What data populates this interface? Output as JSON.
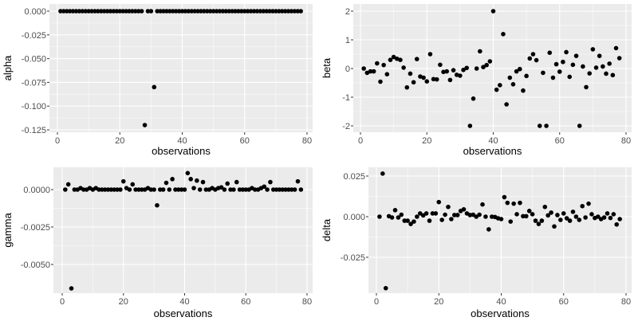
{
  "chart_data": [
    {
      "type": "scatter",
      "panel": "top-left",
      "title": "",
      "xlabel": "observations",
      "ylabel": "alpha",
      "xlim": [
        0,
        80
      ],
      "ylim": [
        -0.125,
        0.0
      ],
      "x_ticks": [
        0,
        20,
        40,
        60,
        80
      ],
      "x_tick_labels": [
        "0",
        "20",
        "40",
        "60",
        "80"
      ],
      "y_ticks": [
        0.0,
        -0.025,
        -0.05,
        -0.075,
        -0.1,
        -0.125
      ],
      "y_tick_labels": [
        "0.000",
        "-0.025",
        "-0.050",
        "-0.075",
        "-0.100",
        "-0.125"
      ],
      "grid": true,
      "x": [
        1,
        2,
        3,
        4,
        5,
        6,
        7,
        8,
        9,
        10,
        11,
        12,
        13,
        14,
        15,
        16,
        17,
        18,
        19,
        20,
        21,
        22,
        23,
        24,
        25,
        26,
        27,
        28,
        29,
        30,
        31,
        32,
        33,
        34,
        35,
        36,
        37,
        38,
        39,
        40,
        41,
        42,
        43,
        44,
        45,
        46,
        47,
        48,
        49,
        50,
        51,
        52,
        53,
        54,
        55,
        56,
        57,
        58,
        59,
        60,
        61,
        62,
        63,
        64,
        65,
        66,
        67,
        68,
        69,
        70,
        71,
        72,
        73,
        74,
        75,
        76,
        77,
        78
      ],
      "y": [
        0,
        0,
        0,
        0,
        0,
        0,
        0,
        0,
        0,
        0,
        0,
        0,
        0,
        0,
        0,
        0,
        0,
        0,
        0,
        0,
        0,
        0,
        0,
        0,
        0,
        0,
        0,
        -0.12,
        0,
        0,
        -0.08,
        0,
        0,
        0,
        0,
        0,
        0,
        0,
        0,
        0,
        0,
        0,
        0,
        0,
        0,
        0,
        0,
        0,
        0,
        0,
        0,
        0,
        0,
        0,
        0,
        0,
        0,
        0,
        0,
        0,
        0,
        0,
        0,
        0,
        0,
        0,
        0,
        0,
        0,
        0,
        0,
        0,
        0,
        0,
        0,
        0,
        0,
        0
      ]
    },
    {
      "type": "scatter",
      "panel": "top-right",
      "title": "",
      "xlabel": "observations",
      "ylabel": "beta",
      "xlim": [
        0,
        80
      ],
      "ylim": [
        -2,
        2
      ],
      "x_ticks": [
        0,
        20,
        40,
        60,
        80
      ],
      "x_tick_labels": [
        "0",
        "20",
        "40",
        "60",
        "80"
      ],
      "y_ticks": [
        2,
        1,
        0,
        -1,
        -2
      ],
      "y_tick_labels": [
        "2",
        "1",
        "0",
        "-1",
        "-2"
      ],
      "grid": true,
      "x": [
        1,
        2,
        3,
        4,
        5,
        6,
        7,
        8,
        9,
        10,
        11,
        12,
        13,
        14,
        15,
        16,
        17,
        18,
        19,
        20,
        21,
        22,
        23,
        24,
        25,
        26,
        27,
        28,
        29,
        30,
        31,
        32,
        33,
        34,
        35,
        36,
        37,
        38,
        39,
        40,
        41,
        42,
        43,
        44,
        45,
        46,
        47,
        48,
        49,
        50,
        51,
        52,
        53,
        54,
        55,
        56,
        57,
        58,
        59,
        60,
        61,
        62,
        63,
        64,
        65,
        66,
        67,
        68,
        69,
        70,
        71,
        72,
        73,
        74,
        75,
        76,
        77,
        78
      ],
      "y": [
        0.0,
        -0.15,
        -0.1,
        -0.1,
        0.18,
        -0.46,
        0.12,
        -0.2,
        0.3,
        0.4,
        0.34,
        0.3,
        0.03,
        -0.66,
        -0.18,
        -0.48,
        0.33,
        -0.28,
        -0.32,
        -0.45,
        0.5,
        -0.37,
        -0.38,
        0.13,
        -0.12,
        -0.1,
        -0.4,
        -0.06,
        -0.22,
        -0.25,
        -0.05,
        0.02,
        -2.0,
        -1.05,
        0.0,
        0.6,
        0.05,
        0.12,
        0.25,
        2.0,
        -0.74,
        -0.58,
        1.2,
        -1.25,
        -0.32,
        -0.55,
        -0.1,
        -0.02,
        -0.77,
        -0.26,
        0.35,
        0.5,
        0.29,
        -2.0,
        -0.15,
        -2.0,
        0.55,
        -0.32,
        0.15,
        -0.11,
        0.23,
        0.57,
        -0.29,
        0.13,
        0.44,
        -2.0,
        0.07,
        -0.65,
        -0.17,
        0.67,
        0.03,
        0.44,
        0.07,
        -0.18,
        0.17,
        -0.23,
        0.71,
        0.36
      ]
    },
    {
      "type": "scatter",
      "panel": "bottom-left",
      "title": "",
      "xlabel": "observations",
      "ylabel": "gamma",
      "xlim": [
        0,
        80
      ],
      "ylim": [
        -0.0067,
        0.0012
      ],
      "x_ticks": [
        0,
        20,
        40,
        60,
        80
      ],
      "x_tick_labels": [
        "0",
        "20",
        "40",
        "60",
        "80"
      ],
      "y_ticks": [
        0.0,
        -0.0025,
        -0.005
      ],
      "y_tick_labels": [
        "0.0000",
        "-0.0025",
        "-0.0050"
      ],
      "grid": true,
      "x": [
        1,
        2,
        3,
        4,
        5,
        6,
        7,
        8,
        9,
        10,
        11,
        12,
        13,
        14,
        15,
        16,
        17,
        18,
        19,
        20,
        21,
        22,
        23,
        24,
        25,
        26,
        27,
        28,
        29,
        30,
        31,
        32,
        33,
        34,
        35,
        36,
        37,
        38,
        39,
        40,
        41,
        42,
        43,
        44,
        45,
        46,
        47,
        48,
        49,
        50,
        51,
        52,
        53,
        54,
        55,
        56,
        57,
        58,
        59,
        60,
        61,
        62,
        63,
        64,
        65,
        66,
        67,
        68,
        69,
        70,
        71,
        72,
        73,
        74,
        75,
        76,
        77,
        78
      ],
      "y": [
        0.0,
        0.00035,
        -0.0066,
        0.0,
        0.0,
        0.0001,
        0.0,
        0.0,
        0.0001,
        0.0,
        0.0001,
        0.0,
        0.0,
        0.0,
        0.0,
        0.0,
        0.0,
        0.0,
        0.0,
        0.00055,
        0.0001,
        0.0,
        0.00035,
        0.0,
        0.0,
        0.0,
        0.0,
        0.0001,
        0.0,
        0.0,
        -0.00105,
        0.0,
        0.0,
        0.00045,
        0.0,
        0.0007,
        0.0,
        0.0,
        0.0,
        0.0,
        0.0011,
        0.0007,
        0.0001,
        0.0006,
        0.0,
        0.0005,
        0.0,
        0.0,
        0.0001,
        0.0,
        0.0001,
        0.00015,
        0.0,
        0.0004,
        0.0,
        0.0,
        0.0005,
        0.0,
        0.0,
        0.0,
        0.0,
        0.0001,
        0.0,
        0.0,
        0.0001,
        0.0002,
        0.0,
        0.0005,
        0.0,
        0.0,
        0.0,
        0.0,
        0.0,
        0.0,
        0.0,
        0.0,
        0.00055,
        0.0
      ]
    },
    {
      "type": "scatter",
      "panel": "bottom-right",
      "title": "",
      "xlabel": "observations",
      "ylabel": "delta",
      "xlim": [
        0,
        80
      ],
      "ylim": [
        -0.044,
        0.027
      ],
      "x_ticks": [
        0,
        20,
        40,
        60,
        80
      ],
      "x_tick_labels": [
        "0",
        "20",
        "40",
        "60",
        "80"
      ],
      "y_ticks": [
        0.025,
        0.0,
        -0.025
      ],
      "y_tick_labels": [
        "0.025",
        "0.000",
        "-0.025"
      ],
      "grid": true,
      "x": [
        1,
        2,
        3,
        4,
        5,
        6,
        7,
        8,
        9,
        10,
        11,
        12,
        13,
        14,
        15,
        16,
        17,
        18,
        19,
        20,
        21,
        22,
        23,
        24,
        25,
        26,
        27,
        28,
        29,
        30,
        31,
        32,
        33,
        34,
        35,
        36,
        37,
        38,
        39,
        40,
        41,
        42,
        43,
        44,
        45,
        46,
        47,
        48,
        49,
        50,
        51,
        52,
        53,
        54,
        55,
        56,
        57,
        58,
        59,
        60,
        61,
        62,
        63,
        64,
        65,
        66,
        67,
        68,
        69,
        70,
        71,
        72,
        73,
        74,
        75,
        76,
        77,
        78
      ],
      "y": [
        0.0,
        0.0265,
        -0.044,
        0.0003,
        -0.0005,
        0.004,
        -0.0005,
        0.0012,
        -0.0025,
        -0.0025,
        -0.0045,
        -0.003,
        0.0,
        0.002,
        0.0008,
        0.002,
        -0.0025,
        0.002,
        0.002,
        0.009,
        -0.002,
        0.0012,
        0.006,
        -0.0015,
        0.001,
        0.001,
        0.0035,
        0.0045,
        0.002,
        0.001,
        0.0012,
        0.0,
        0.0012,
        0.0075,
        0.0,
        -0.0078,
        0.0,
        -0.0002,
        -0.001,
        -0.0015,
        0.012,
        0.0085,
        -0.003,
        0.008,
        0.0015,
        0.0085,
        0.0003,
        0.0003,
        0.0035,
        0.0015,
        -0.0025,
        -0.0045,
        -0.0025,
        0.006,
        0.0008,
        0.0025,
        -0.006,
        0.001,
        -0.002,
        0.002,
        -0.001,
        -0.0025,
        0.003,
        0.0,
        -0.002,
        0.0065,
        -0.0005,
        0.008,
        0.0015,
        -0.0008,
        0.0,
        -0.0015,
        -0.0005,
        0.002,
        -0.0008,
        0.0015,
        -0.0048,
        -0.0015
      ]
    }
  ],
  "panels": {
    "alpha": {
      "ylabel": "alpha",
      "xlabel": "observations"
    },
    "beta": {
      "ylabel": "beta",
      "xlabel": "observations"
    },
    "gamma": {
      "ylabel": "gamma",
      "xlabel": "observations"
    },
    "delta": {
      "ylabel": "delta",
      "xlabel": "observations"
    }
  },
  "colors": {
    "panel_background": "#ebebeb",
    "grid": "#ffffff",
    "points": "#000000",
    "tick_label": "#4d4d4d"
  }
}
